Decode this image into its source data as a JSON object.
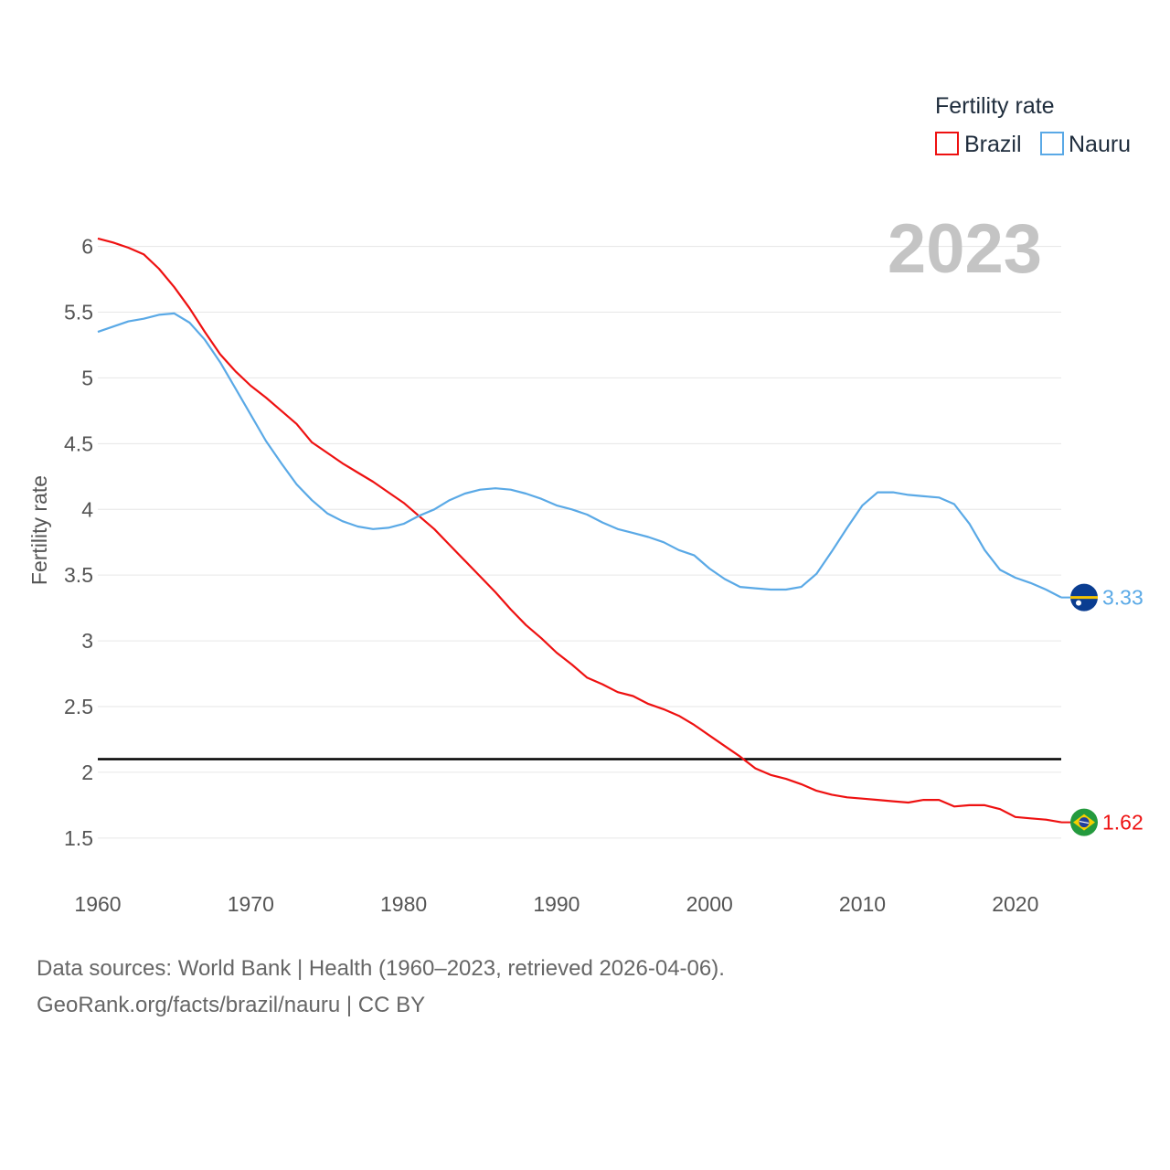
{
  "chart_data": {
    "type": "line",
    "legend_title": "Fertility rate",
    "ylabel": "Fertility rate",
    "xlabel": "",
    "year_label": "2023",
    "xlim": [
      1960,
      2023
    ],
    "ylim": [
      1.2,
      6.15
    ],
    "xticks": [
      1960,
      1970,
      1980,
      1990,
      2000,
      2010,
      2020
    ],
    "yticks": [
      1.5,
      2,
      2.5,
      3,
      3.5,
      4,
      4.5,
      5,
      5.5,
      6
    ],
    "ytick_labels": [
      "1.5",
      "2",
      "2.5",
      "3",
      "3.5",
      "4",
      "4.5",
      "5",
      "5.5",
      "6"
    ],
    "reference_line": 2.1,
    "series": [
      {
        "name": "Brazil",
        "color": "#ee1111",
        "flag_icon": "brazil-flag-icon",
        "end_label": "1.62",
        "x": [
          1960,
          1961,
          1962,
          1963,
          1964,
          1965,
          1966,
          1967,
          1968,
          1969,
          1970,
          1971,
          1972,
          1973,
          1974,
          1975,
          1976,
          1977,
          1978,
          1979,
          1980,
          1981,
          1982,
          1983,
          1984,
          1985,
          1986,
          1987,
          1988,
          1989,
          1990,
          1991,
          1992,
          1993,
          1994,
          1995,
          1996,
          1997,
          1998,
          1999,
          2000,
          2001,
          2002,
          2003,
          2004,
          2005,
          2006,
          2007,
          2008,
          2009,
          2010,
          2011,
          2012,
          2013,
          2014,
          2015,
          2016,
          2017,
          2018,
          2019,
          2020,
          2021,
          2022,
          2023
        ],
        "values": [
          6.06,
          6.03,
          5.99,
          5.94,
          5.83,
          5.69,
          5.53,
          5.35,
          5.18,
          5.05,
          4.94,
          4.85,
          4.75,
          4.65,
          4.51,
          4.43,
          4.35,
          4.28,
          4.21,
          4.13,
          4.05,
          3.95,
          3.85,
          3.73,
          3.61,
          3.49,
          3.37,
          3.24,
          3.12,
          3.02,
          2.91,
          2.82,
          2.72,
          2.67,
          2.61,
          2.58,
          2.52,
          2.48,
          2.43,
          2.36,
          2.28,
          2.2,
          2.12,
          2.03,
          1.98,
          1.95,
          1.91,
          1.86,
          1.83,
          1.81,
          1.8,
          1.79,
          1.78,
          1.77,
          1.79,
          1.79,
          1.74,
          1.75,
          1.75,
          1.72,
          1.66,
          1.65,
          1.64,
          1.62
        ]
      },
      {
        "name": "Nauru",
        "color": "#5aa9e6",
        "flag_icon": "nauru-flag-icon",
        "end_label": "3.33",
        "x": [
          1960,
          1961,
          1962,
          1963,
          1964,
          1965,
          1966,
          1967,
          1968,
          1969,
          1970,
          1971,
          1972,
          1973,
          1974,
          1975,
          1976,
          1977,
          1978,
          1979,
          1980,
          1981,
          1982,
          1983,
          1984,
          1985,
          1986,
          1987,
          1988,
          1989,
          1990,
          1991,
          1992,
          1993,
          1994,
          1995,
          1996,
          1997,
          1998,
          1999,
          2000,
          2001,
          2002,
          2003,
          2004,
          2005,
          2006,
          2007,
          2008,
          2009,
          2010,
          2011,
          2012,
          2013,
          2014,
          2015,
          2016,
          2017,
          2018,
          2019,
          2020,
          2021,
          2022,
          2023
        ],
        "values": [
          5.35,
          5.39,
          5.43,
          5.45,
          5.48,
          5.49,
          5.42,
          5.29,
          5.12,
          4.92,
          4.72,
          4.52,
          4.35,
          4.19,
          4.07,
          3.97,
          3.91,
          3.87,
          3.85,
          3.86,
          3.89,
          3.95,
          4.0,
          4.07,
          4.12,
          4.15,
          4.16,
          4.15,
          4.12,
          4.08,
          4.03,
          4.0,
          3.96,
          3.9,
          3.85,
          3.82,
          3.79,
          3.75,
          3.69,
          3.65,
          3.55,
          3.47,
          3.41,
          3.4,
          3.39,
          3.39,
          3.41,
          3.51,
          3.68,
          3.86,
          4.03,
          4.13,
          4.13,
          4.11,
          4.1,
          4.09,
          4.04,
          3.89,
          3.69,
          3.54,
          3.48,
          3.44,
          3.39,
          3.33
        ]
      }
    ]
  },
  "footer": {
    "sources": "Data sources: World Bank | Health (1960–2023, retrieved 2026-04-06).",
    "credit": "GeoRank.org/facts/brazil/nauru | CC BY"
  }
}
